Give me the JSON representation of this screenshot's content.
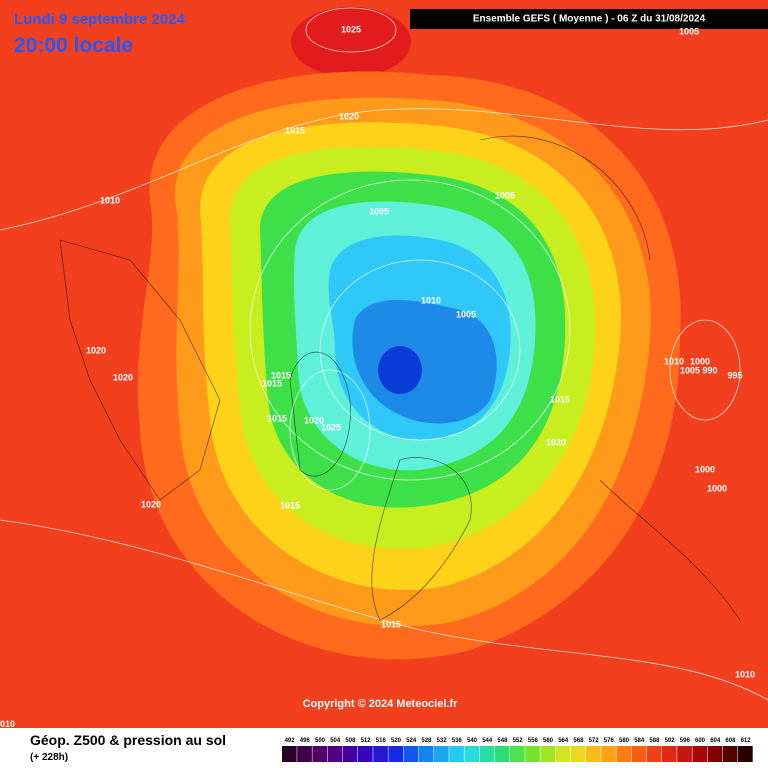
{
  "header": {
    "date": "Lundi 9 septembre 2024",
    "time": "20:00 locale",
    "model": "Ensemble GEFS  ( Moyenne )  -  06 Z du 31/08/2024"
  },
  "isobar_labels": [
    "1025",
    "1020",
    "1015",
    "1010",
    "1005",
    "1005",
    "1010",
    "1005",
    "1020",
    "1020",
    "1015",
    "1015",
    "1015",
    "1020",
    "1025",
    "1015",
    "1020",
    "1010",
    "1000",
    "1005",
    "990",
    "995",
    "1000",
    "1000",
    "1015",
    "1020",
    "1015",
    "1010",
    "1005"
  ],
  "corner_label": "010",
  "copyright": "Copyright © 2024 Meteociel.fr",
  "legend": {
    "title": "Géop. Z500 & pression au sol",
    "subtitle": "(+ 228h)",
    "scale": [
      492,
      496,
      500,
      504,
      508,
      512,
      516,
      520,
      524,
      528,
      532,
      536,
      540,
      544,
      548,
      552,
      556,
      560,
      564,
      568,
      572,
      576,
      580,
      584,
      588,
      592,
      596,
      600,
      604,
      608,
      612
    ]
  }
}
